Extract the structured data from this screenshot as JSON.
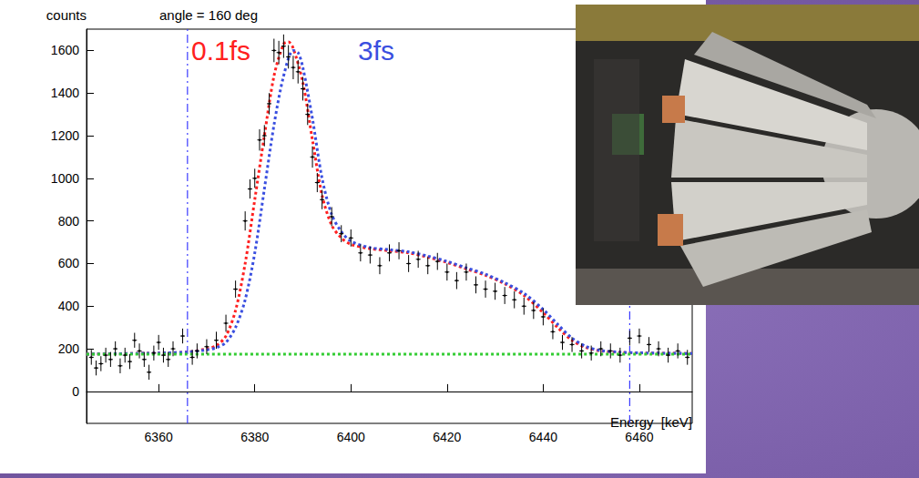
{
  "chart_data": {
    "type": "scatter",
    "title": "angle = 160 deg",
    "x_label": "Energy  [keV]",
    "y_label": "counts",
    "xlim": [
      6345,
      6471
    ],
    "ylim": [
      -150,
      1700
    ],
    "xticks": [
      6360,
      6380,
      6400,
      6420,
      6440,
      6460
    ],
    "yticks": [
      0,
      200,
      400,
      600,
      800,
      1000,
      1200,
      1400,
      1600
    ],
    "grid": false,
    "series": [
      {
        "type": "scatter",
        "color": "#000000",
        "marker": "point",
        "x": [
          6346,
          6347,
          6348,
          6349,
          6350,
          6351,
          6352,
          6353,
          6354,
          6355,
          6356,
          6357,
          6358,
          6359,
          6360,
          6361,
          6362,
          6363,
          6365,
          6367,
          6368,
          6370,
          6372,
          6374,
          6376,
          6378,
          6379,
          6380,
          6381,
          6382,
          6383,
          6384,
          6385,
          6386,
          6387,
          6388,
          6389,
          6390,
          6391,
          6392,
          6393,
          6394,
          6396,
          6398,
          6400,
          6402,
          6404,
          6406,
          6408,
          6410,
          6412,
          6414,
          6416,
          6418,
          6420,
          6422,
          6424,
          6426,
          6428,
          6430,
          6432,
          6434,
          6436,
          6438,
          6440,
          6442,
          6444,
          6446,
          6448,
          6450,
          6452,
          6454,
          6456,
          6458,
          6460,
          6462,
          6464,
          6466,
          6468,
          6470
        ],
        "values": [
          160,
          110,
          130,
          170,
          150,
          200,
          120,
          170,
          140,
          240,
          190,
          150,
          90,
          180,
          230,
          170,
          150,
          200,
          260,
          160,
          190,
          210,
          240,
          320,
          480,
          800,
          950,
          1000,
          1180,
          1200,
          1350,
          1600,
          1590,
          1620,
          1570,
          1520,
          1500,
          1420,
          1300,
          1100,
          980,
          900,
          820,
          740,
          720,
          650,
          640,
          590,
          650,
          660,
          600,
          620,
          590,
          610,
          560,
          520,
          560,
          500,
          480,
          470,
          450,
          430,
          400,
          380,
          350,
          280,
          230,
          220,
          190,
          180,
          200,
          190,
          170,
          250,
          260,
          220,
          200,
          170,
          190,
          160
        ],
        "errors": [
          35,
          35,
          35,
          35,
          35,
          35,
          35,
          35,
          35,
          35,
          35,
          35,
          35,
          35,
          35,
          35,
          35,
          35,
          35,
          35,
          35,
          35,
          40,
          40,
          40,
          45,
          45,
          45,
          50,
          50,
          50,
          55,
          55,
          55,
          55,
          55,
          55,
          55,
          50,
          50,
          45,
          45,
          45,
          40,
          40,
          40,
          40,
          40,
          40,
          40,
          40,
          40,
          40,
          40,
          40,
          40,
          40,
          40,
          40,
          40,
          40,
          40,
          40,
          40,
          40,
          35,
          35,
          35,
          35,
          35,
          35,
          35,
          35,
          35,
          35,
          35,
          35,
          35,
          35,
          35
        ]
      },
      {
        "type": "line",
        "color": "#ff2020",
        "line_style": "dotted",
        "x": [
          6345,
          6360,
          6366,
          6370,
          6372,
          6374,
          6376,
          6378,
          6380,
          6382,
          6384,
          6386,
          6387,
          6388,
          6390,
          6392,
          6394,
          6396,
          6398,
          6400,
          6404,
          6408,
          6412,
          6416,
          6420,
          6424,
          6428,
          6432,
          6436,
          6440,
          6443,
          6446,
          6449,
          6452,
          6456,
          6460,
          6471
        ],
        "values": [
          175,
          180,
          185,
          200,
          215,
          260,
          380,
          600,
          900,
          1200,
          1480,
          1630,
          1640,
          1610,
          1450,
          1180,
          920,
          780,
          720,
          690,
          670,
          660,
          650,
          630,
          605,
          575,
          545,
          505,
          450,
          370,
          300,
          240,
          205,
          190,
          183,
          180,
          178
        ]
      },
      {
        "type": "line",
        "color": "#3a4fe0",
        "line_style": "dotted",
        "x": [
          6345,
          6360,
          6366,
          6370,
          6372,
          6374,
          6376,
          6378,
          6380,
          6382,
          6384,
          6386,
          6388,
          6389,
          6390,
          6392,
          6394,
          6396,
          6398,
          6400,
          6404,
          6408,
          6412,
          6416,
          6420,
          6424,
          6428,
          6432,
          6436,
          6440,
          6443,
          6446,
          6449,
          6452,
          6456,
          6460,
          6471
        ],
        "values": [
          175,
          180,
          185,
          195,
          205,
          230,
          300,
          430,
          650,
          950,
          1250,
          1480,
          1600,
          1590,
          1520,
          1280,
          1000,
          830,
          750,
          705,
          675,
          665,
          655,
          635,
          610,
          580,
          550,
          510,
          460,
          385,
          315,
          250,
          210,
          192,
          184,
          181,
          178
        ]
      },
      {
        "type": "line",
        "color": "#33cc33",
        "line_style": "dotted",
        "x": [
          6345,
          6471
        ],
        "values": [
          175,
          175
        ]
      }
    ],
    "vlines": {
      "x": [
        6366,
        6458
      ],
      "color": "#3a3aff",
      "line_style": "dashdot"
    },
    "annotations": [
      {
        "text": "0.1fs",
        "color": "#ff2020"
      },
      {
        "text": "3fs",
        "color": "#3a4fe0"
      }
    ]
  }
}
